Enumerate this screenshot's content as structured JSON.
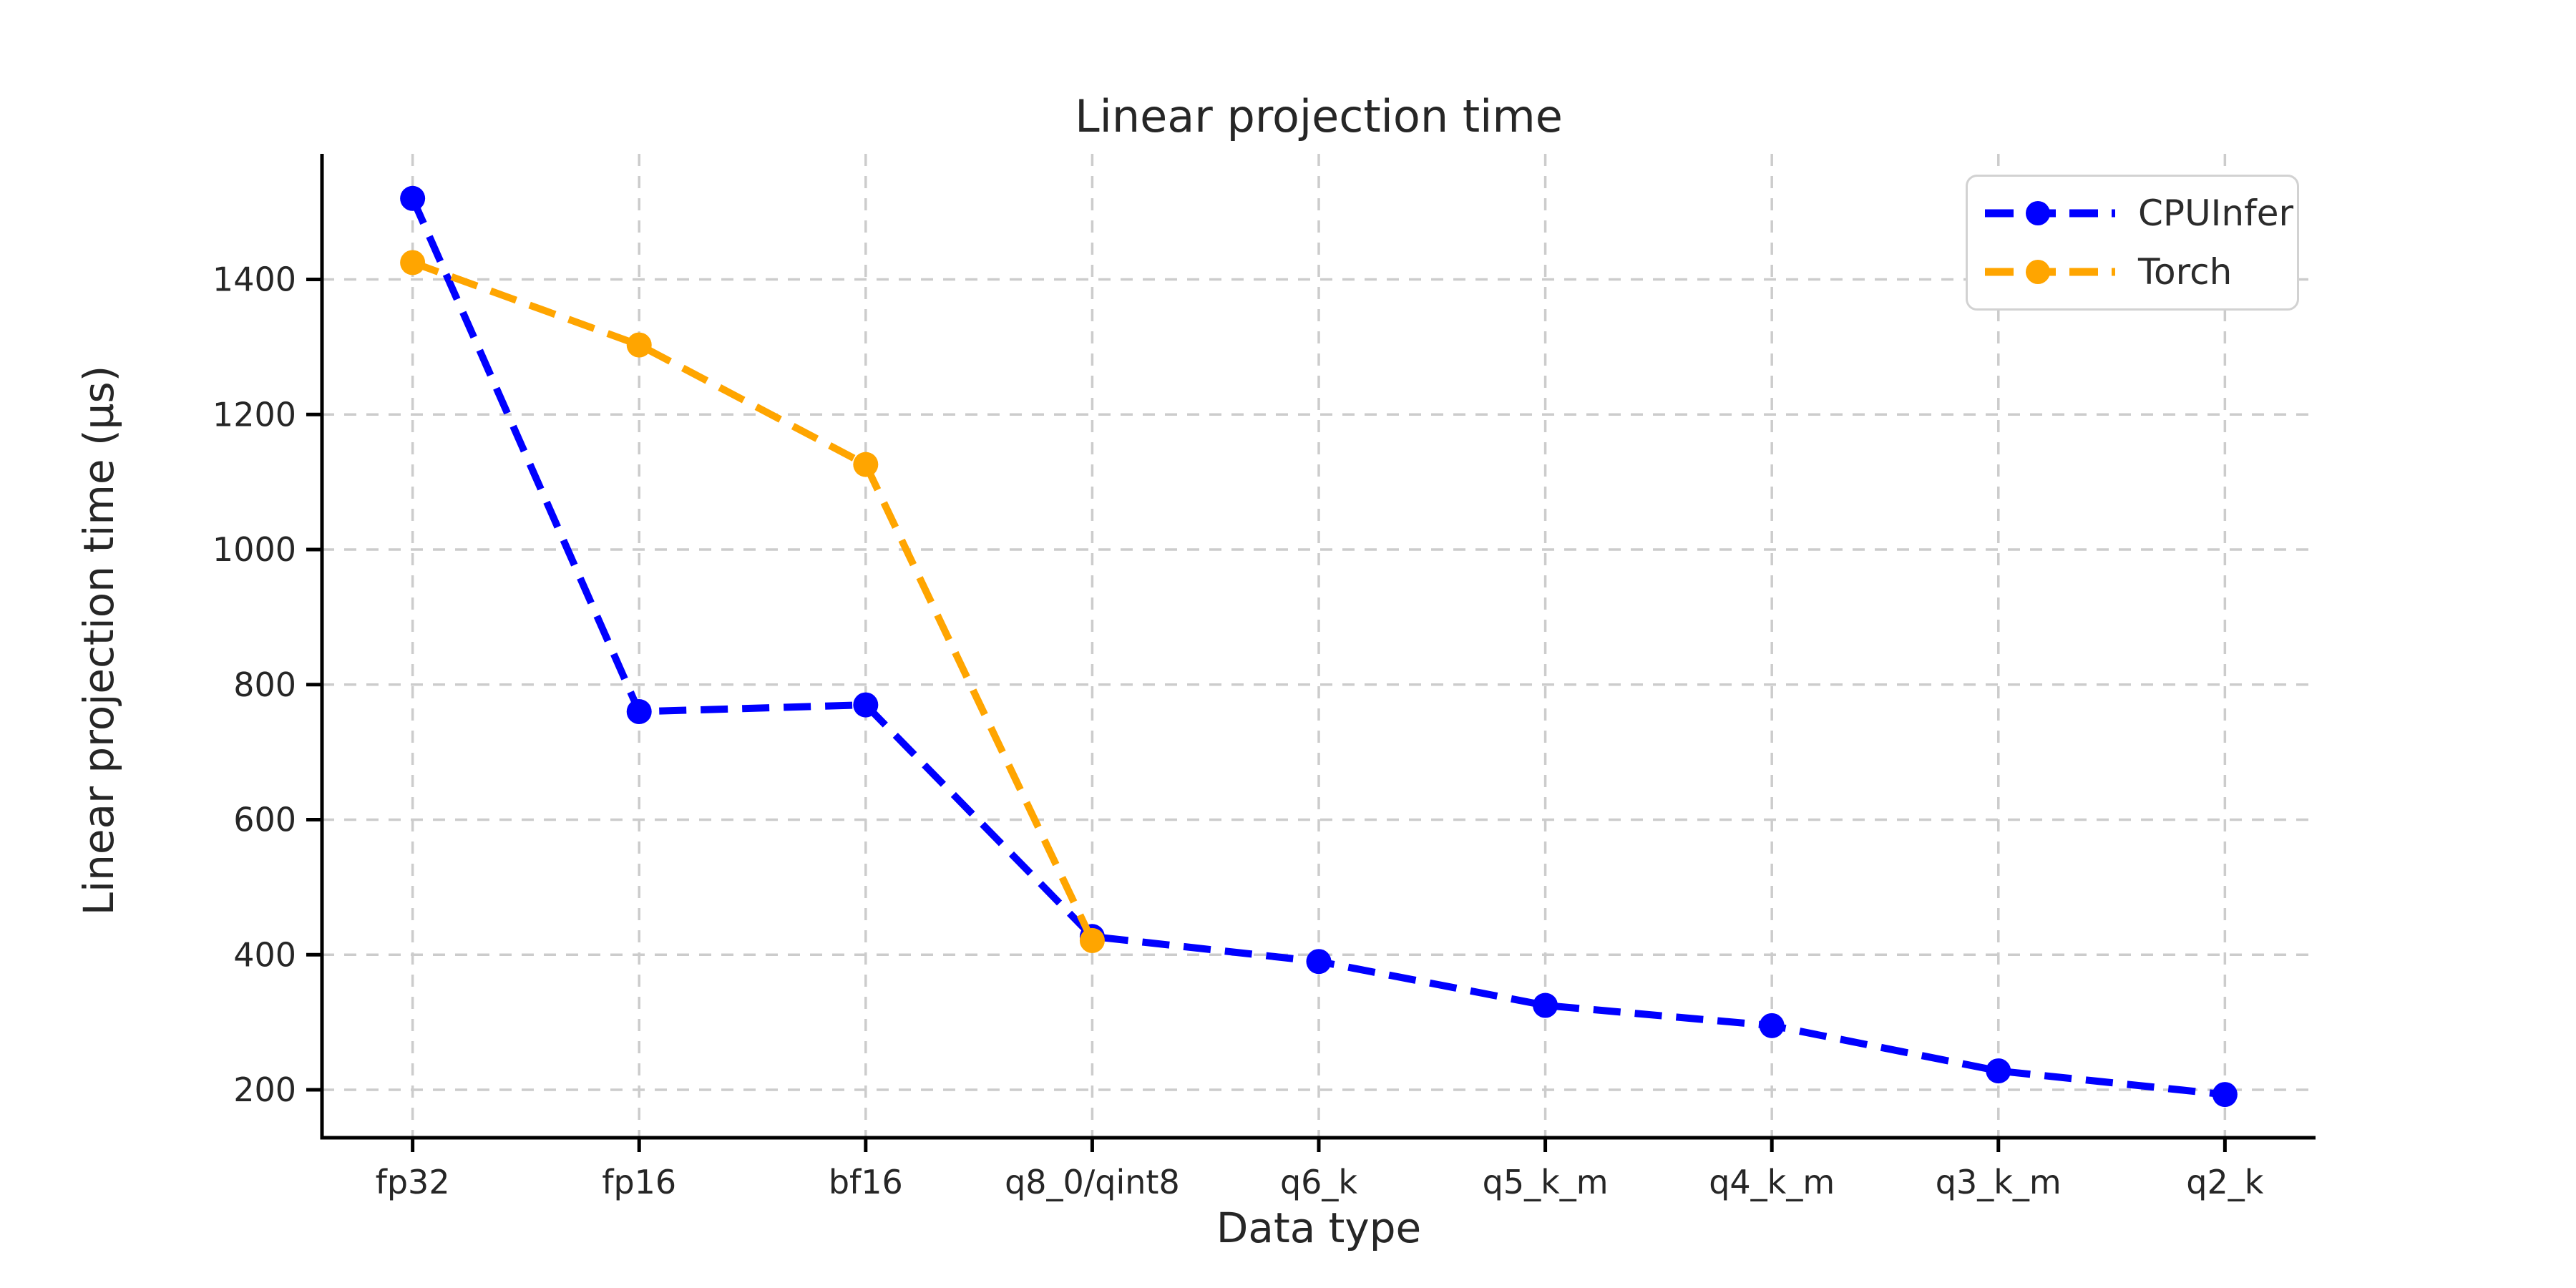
{
  "chart_data": {
    "type": "line",
    "title": "Linear projection time",
    "xlabel": "Data type",
    "ylabel": "Linear projection time (µs)",
    "categories": [
      "fp32",
      "fp16",
      "bf16",
      "q8_0/qint8",
      "q6_k",
      "q5_k_m",
      "q4_k_m",
      "q3_k_m",
      "q2_k"
    ],
    "series": [
      {
        "name": "CPUInfer",
        "color": "#0000ff",
        "linestyle": "dashed",
        "marker": "circle",
        "values": [
          1520,
          760,
          770,
          427,
          390,
          325,
          295,
          228,
          193
        ]
      },
      {
        "name": "Torch",
        "color": "#ffa500",
        "linestyle": "dashed",
        "marker": "circle",
        "values": [
          1425,
          1303,
          1126,
          421,
          null,
          null,
          null,
          null,
          null
        ]
      }
    ],
    "y_ticks": [
      200,
      400,
      600,
      800,
      1000,
      1200,
      1400
    ],
    "ylim": [
      129,
      1586
    ],
    "xlim": [
      -0.4,
      8.4
    ],
    "grid": true,
    "gridline_style": "dashed",
    "legend_position": "upper right",
    "colors": {
      "grid": "#cccccc",
      "spine": "#000000",
      "text": "#262626",
      "background": "#ffffff",
      "legend_border": "#d2d2d2"
    }
  }
}
